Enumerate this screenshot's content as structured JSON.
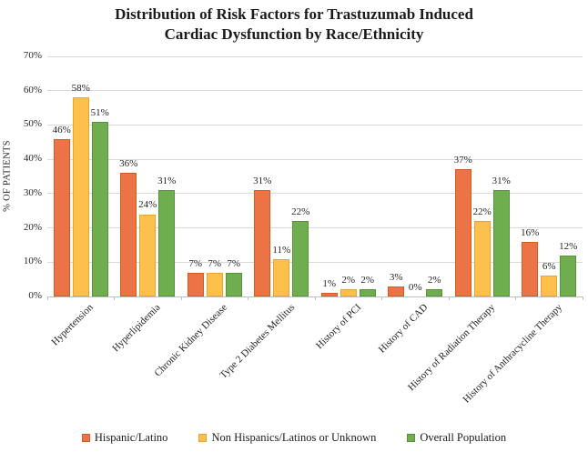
{
  "chart_data": {
    "type": "bar",
    "title": "Distribution of Risk Factors for Trastuzumab Induced Cardiac Dysfunction by Race/Ethnicity",
    "title_lines": [
      "Distribution of Risk Factors for Trastuzumab Induced",
      "Cardiac Dysfunction by Race/Ethnicity"
    ],
    "ylabel": "% OF PATIENTS",
    "ylim": [
      0,
      70
    ],
    "ytick_step": 10,
    "ytick_suffix": "%",
    "data_label_suffix": "%",
    "grid": true,
    "legend_position": "bottom",
    "categories": [
      "Hypertension",
      "Hyperlipidemia",
      "Chronic Kidney Disease",
      "Type 2 Diabetes Mellitus",
      "History of PCI",
      "History of CAD",
      "History of Radiation Therapy",
      "History of Anthracycline Therapy"
    ],
    "series": [
      {
        "name": "Hispanic/Latino",
        "color": "#ec7345",
        "border": "#d55b24",
        "values": [
          46,
          36,
          7,
          31,
          1,
          3,
          37,
          16
        ]
      },
      {
        "name": "Non Hispanics/Latinos or Unknown",
        "color": "#fdc14b",
        "border": "#eca23a",
        "values": [
          58,
          24,
          7,
          11,
          2,
          0,
          22,
          6
        ]
      },
      {
        "name": "Overall Population",
        "color": "#6fae4e",
        "border": "#569339",
        "values": [
          51,
          31,
          7,
          22,
          2,
          2,
          31,
          12
        ]
      }
    ],
    "colors": {
      "gridline": "#d9d9d9",
      "axis_line": "#bfbfbf",
      "text": "#1f1f1f"
    }
  }
}
